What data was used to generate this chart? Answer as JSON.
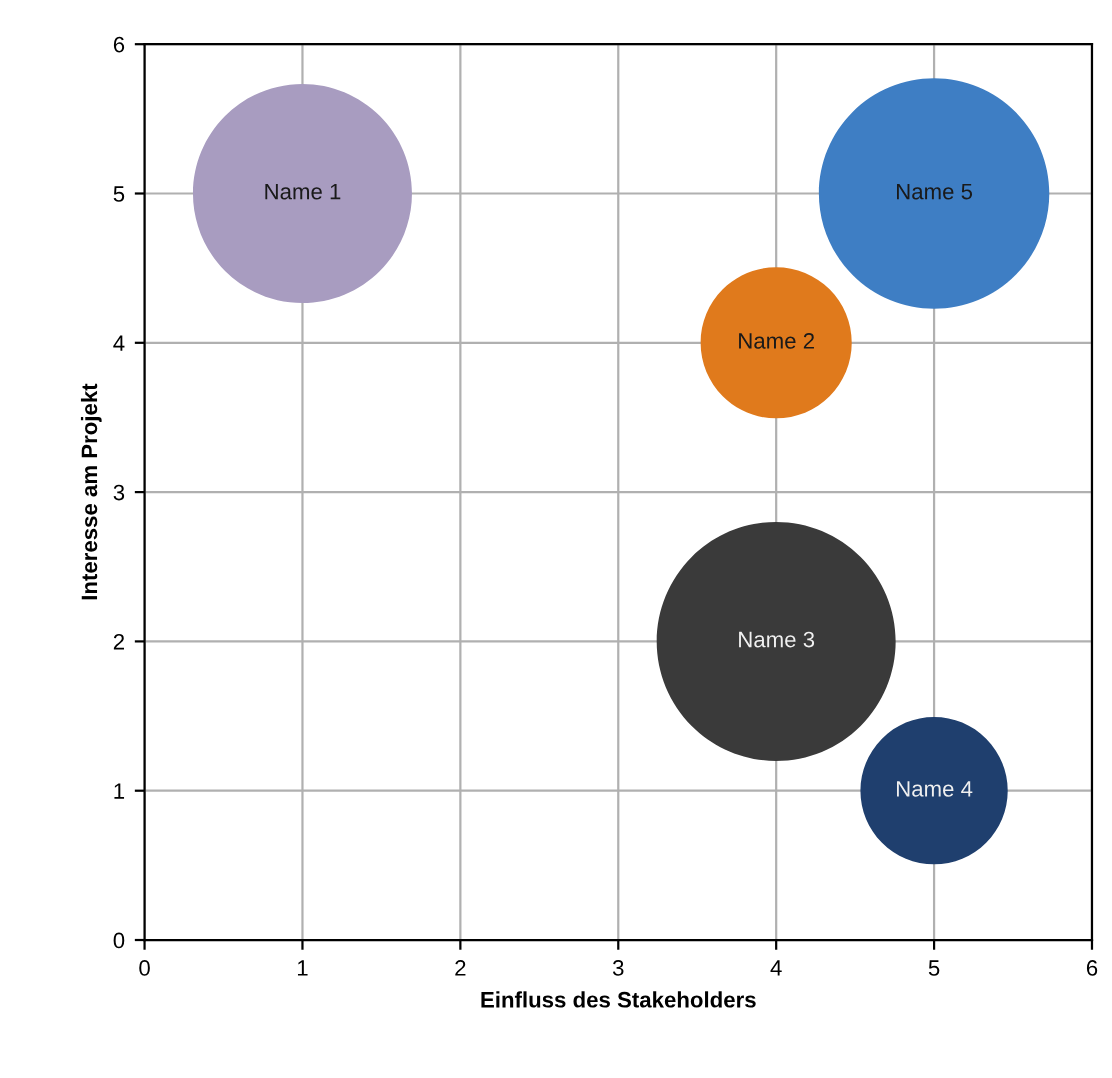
{
  "chart_data": {
    "type": "bubble",
    "xlabel": "Einfluss des Stakeholders",
    "ylabel": "Interesse am Projekt",
    "xlim": [
      0,
      6
    ],
    "ylim": [
      0,
      6
    ],
    "xticks": [
      0,
      1,
      2,
      3,
      4,
      5,
      6
    ],
    "yticks": [
      0,
      1,
      2,
      3,
      4,
      5,
      6
    ],
    "grid": true,
    "series": [
      {
        "name": "Name 1",
        "color": "#a89cc0",
        "x": [
          1
        ],
        "values": [
          5
        ],
        "sizes": [
          0.84
        ]
      },
      {
        "name": "Name 2",
        "color": "#e07a1c",
        "x": [
          4
        ],
        "values": [
          4
        ],
        "sizes": [
          0.4
        ]
      },
      {
        "name": "Name 3",
        "color": "#3a3a3a",
        "x": [
          4
        ],
        "values": [
          2
        ],
        "sizes": [
          1
        ]
      },
      {
        "name": "Name 4",
        "color": "#1f3f6e",
        "x": [
          5
        ],
        "values": [
          1
        ],
        "sizes": [
          0.38
        ]
      },
      {
        "name": "Name 5",
        "color": "#3e7ec4",
        "x": [
          5
        ],
        "values": [
          5
        ],
        "sizes": [
          0.93
        ]
      }
    ]
  }
}
